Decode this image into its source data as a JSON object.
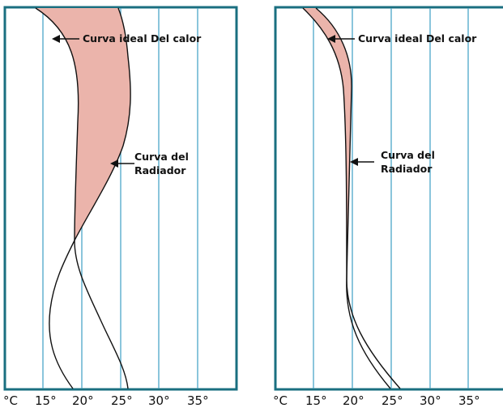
{
  "panels": [
    {
      "ideal_curve_label": "Curva ideal Del calor",
      "radiator_label_line1": "Curva del",
      "radiator_label_line2": "Radiador",
      "unit_label": "°C",
      "ticks": [
        "15°",
        "20°",
        "25°",
        "30°",
        "35°"
      ]
    },
    {
      "ideal_curve_label": "Curva ideal Del calor",
      "radiator_label_line1": "Curva del",
      "radiator_label_line2": "Radiador",
      "unit_label": "°C",
      "ticks": [
        "15°",
        "20°",
        "25°",
        "30°",
        "35°"
      ]
    }
  ],
  "colors": {
    "frame": "#1a6f80",
    "grid": "#4ba6c8",
    "fill": "#ebb4ab",
    "curve": "#111111"
  }
}
